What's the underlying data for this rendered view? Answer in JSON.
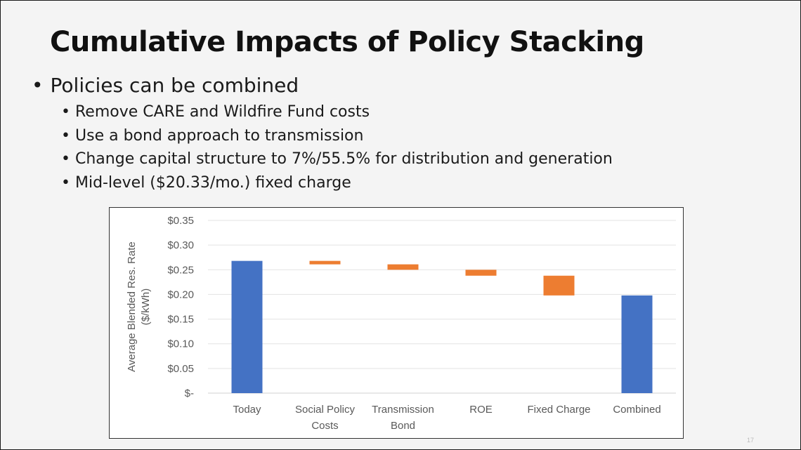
{
  "slide": {
    "title": "Cumulative Impacts of Policy Stacking",
    "bullet": "Policies can be combined",
    "sub_bullets": [
      "Remove CARE and Wildfire Fund costs",
      "Use a bond approach to transmission",
      "Change capital structure to 7%/55.5% for distribution and generation",
      "Mid-level ($20.33/mo.) fixed charge"
    ],
    "page_number": "17"
  },
  "chart_data": {
    "type": "bar",
    "subtype": "waterfall",
    "ylabel": "Average Blended Res. Rate ($/kWh)",
    "ylabel_line1": "Average Blended Res. Rate",
    "ylabel_line2": "($/kWh)",
    "ylim": [
      0,
      0.35
    ],
    "yticks": [
      0,
      0.05,
      0.1,
      0.15,
      0.2,
      0.25,
      0.3,
      0.35
    ],
    "ytick_labels": [
      "$-",
      "$0.05",
      "$0.10",
      "$0.15",
      "$0.20",
      "$0.25",
      "$0.30",
      "$0.35"
    ],
    "grid": true,
    "categories": [
      "Today",
      "Social Policy Costs",
      "Transmission Bond",
      "ROE",
      "Fixed Charge",
      "Combined"
    ],
    "category_lines": [
      [
        "Today"
      ],
      [
        "Social Policy",
        "Costs"
      ],
      [
        "Transmission",
        "Bond"
      ],
      [
        "ROE"
      ],
      [
        "Fixed Charge"
      ],
      [
        "Combined"
      ]
    ],
    "bars": [
      {
        "category": "Today",
        "kind": "total",
        "start": 0,
        "end": 0.268
      },
      {
        "category": "Social Policy Costs",
        "kind": "decrease",
        "start": 0.268,
        "end": 0.261
      },
      {
        "category": "Transmission Bond",
        "kind": "decrease",
        "start": 0.261,
        "end": 0.25
      },
      {
        "category": "ROE",
        "kind": "decrease",
        "start": 0.25,
        "end": 0.238
      },
      {
        "category": "Fixed Charge",
        "kind": "decrease",
        "start": 0.238,
        "end": 0.198
      },
      {
        "category": "Combined",
        "kind": "total",
        "start": 0,
        "end": 0.198
      }
    ],
    "colors": {
      "total": "#4472c4",
      "decrease": "#ed7d31",
      "grid": "#e3e3e3",
      "text": "#595959"
    }
  }
}
